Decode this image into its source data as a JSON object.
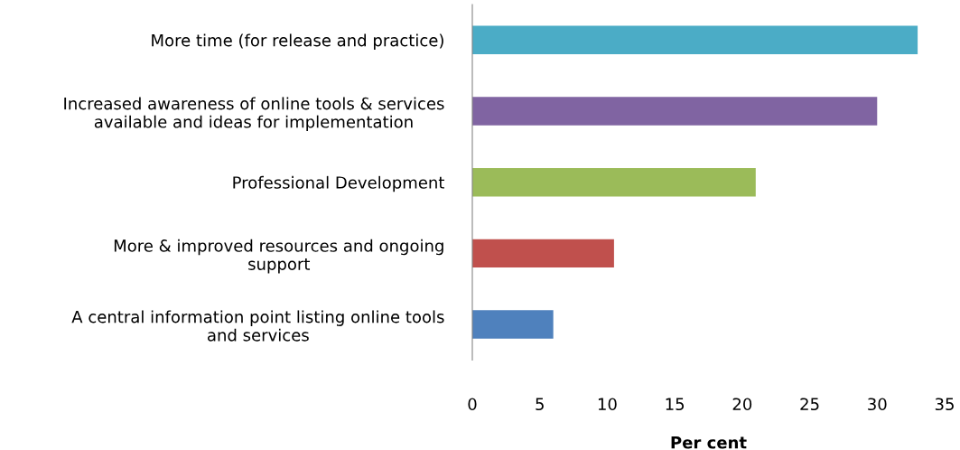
{
  "chart_data": {
    "type": "bar",
    "orientation": "horizontal",
    "xlabel": "Per cent",
    "categories": [
      "More time (for release and practice)",
      "Increased awareness of online tools & services\navailable and ideas for implementation",
      "Professional Development",
      "More & improved resources and ongoing\nsupport",
      "A central information point listing online tools\nand services"
    ],
    "values": [
      33,
      30,
      21,
      10.5,
      6
    ],
    "colors": [
      "#4bacc6",
      "#8064a2",
      "#9bbb59",
      "#c0504d",
      "#4f81bd"
    ],
    "xlim": [
      0,
      35
    ],
    "xticks": [
      0,
      5,
      10,
      15,
      20,
      25,
      30,
      35
    ],
    "grid": false,
    "legend": false
  }
}
